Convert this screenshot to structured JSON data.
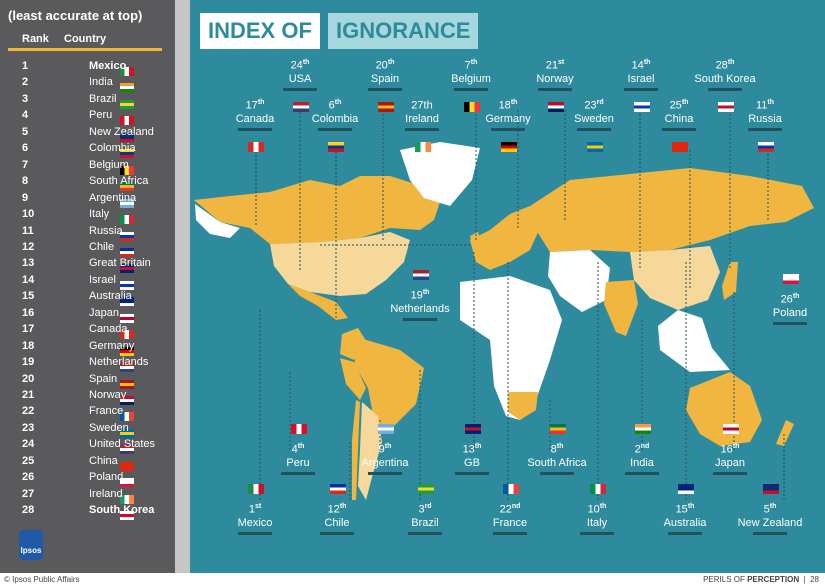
{
  "sidebar": {
    "heading": "(least accurate at top)",
    "col_rank": "Rank",
    "col_country": "Country",
    "rows": [
      {
        "rank": "1",
        "country": "Mexico",
        "flag": "mexico"
      },
      {
        "rank": "2",
        "country": "India",
        "flag": "india"
      },
      {
        "rank": "3",
        "country": "Brazil",
        "flag": "brazil"
      },
      {
        "rank": "4",
        "country": "Peru",
        "flag": "peru"
      },
      {
        "rank": "5",
        "country": "New Zealand",
        "flag": "new-zealand"
      },
      {
        "rank": "6",
        "country": "Colombia",
        "flag": "colombia"
      },
      {
        "rank": "7",
        "country": "Belgium",
        "flag": "belgium"
      },
      {
        "rank": "8",
        "country": "South Africa",
        "flag": "south-africa"
      },
      {
        "rank": "9",
        "country": "Argentina",
        "flag": "argentina"
      },
      {
        "rank": "10",
        "country": "Italy",
        "flag": "italy"
      },
      {
        "rank": "11",
        "country": "Russia",
        "flag": "russia"
      },
      {
        "rank": "12",
        "country": "Chile",
        "flag": "chile"
      },
      {
        "rank": "13",
        "country": "Great Britain",
        "flag": "great-britain"
      },
      {
        "rank": "14",
        "country": "Israel",
        "flag": "israel"
      },
      {
        "rank": "15",
        "country": "Australia",
        "flag": "australia"
      },
      {
        "rank": "16",
        "country": "Japan",
        "flag": "japan"
      },
      {
        "rank": "17",
        "country": "Canada",
        "flag": "canada"
      },
      {
        "rank": "18",
        "country": "Germany",
        "flag": "germany"
      },
      {
        "rank": "19",
        "country": "Netherlands",
        "flag": "netherlands"
      },
      {
        "rank": "20",
        "country": "Spain",
        "flag": "spain"
      },
      {
        "rank": "21",
        "country": "Norway",
        "flag": "norway"
      },
      {
        "rank": "22",
        "country": "France",
        "flag": "france"
      },
      {
        "rank": "23",
        "country": "Sweden",
        "flag": "sweden"
      },
      {
        "rank": "24",
        "country": "United States",
        "flag": "usa"
      },
      {
        "rank": "25",
        "country": "China",
        "flag": "china"
      },
      {
        "rank": "26",
        "country": "Poland",
        "flag": "poland"
      },
      {
        "rank": "27",
        "country": "Ireland",
        "flag": "ireland"
      },
      {
        "rank": "28",
        "country": "South Korea",
        "flag": "south-korea"
      }
    ],
    "logo_text": "Ipsos"
  },
  "title": {
    "part1": "INDEX OF",
    "part2": "IGNORANCE"
  },
  "map": {
    "land_color_high": "#f0b63f",
    "land_color_mid": "#f5d89a",
    "land_color_other": "#ffffff",
    "sea_color": "#2e8b9e",
    "callouts": [
      {
        "rank": "24",
        "suffix": "th",
        "name": "USA",
        "flag": "usa"
      },
      {
        "rank": "20",
        "suffix": "th",
        "name": "Spain",
        "flag": "spain"
      },
      {
        "rank": "7",
        "suffix": "th",
        "name": "Belgium",
        "flag": "belgium"
      },
      {
        "rank": "21",
        "suffix": "st",
        "name": "Norway",
        "flag": "norway"
      },
      {
        "rank": "14",
        "suffix": "th",
        "name": "Israel",
        "flag": "israel"
      },
      {
        "rank": "28",
        "suffix": "th",
        "name": "South Korea",
        "flag": "south-korea"
      },
      {
        "rank": "17",
        "suffix": "th",
        "name": "Canada",
        "flag": "canada"
      },
      {
        "rank": "6",
        "suffix": "th",
        "name": "Colombia",
        "flag": "colombia"
      },
      {
        "rank": "27th",
        "suffix": "",
        "name": "Ireland",
        "flag": "ireland"
      },
      {
        "rank": "18",
        "suffix": "th",
        "name": "Germany",
        "flag": "germany"
      },
      {
        "rank": "23",
        "suffix": "rd",
        "name": "Sweden",
        "flag": "sweden"
      },
      {
        "rank": "25",
        "suffix": "th",
        "name": "China",
        "flag": "china"
      },
      {
        "rank": "11",
        "suffix": "th",
        "name": "Russia",
        "flag": "russia"
      },
      {
        "rank": "19",
        "suffix": "th",
        "name": "Netherlands",
        "flag": "netherlands"
      },
      {
        "rank": "26",
        "suffix": "th",
        "name": "Poland",
        "flag": "poland"
      },
      {
        "rank": "4",
        "suffix": "th",
        "name": "Peru",
        "flag": "peru"
      },
      {
        "rank": "9",
        "suffix": "th",
        "name": "Argentina",
        "flag": "argentina"
      },
      {
        "rank": "13",
        "suffix": "th",
        "name": "GB",
        "flag": "great-britain"
      },
      {
        "rank": "8",
        "suffix": "th",
        "name": "South Africa",
        "flag": "south-africa"
      },
      {
        "rank": "2",
        "suffix": "nd",
        "name": "India",
        "flag": "india"
      },
      {
        "rank": "16",
        "suffix": "th",
        "name": "Japan",
        "flag": "japan"
      },
      {
        "rank": "1",
        "suffix": "st",
        "name": "Mexico",
        "flag": "mexico"
      },
      {
        "rank": "12",
        "suffix": "th",
        "name": "Chile",
        "flag": "chile"
      },
      {
        "rank": "3",
        "suffix": "rd",
        "name": "Brazil",
        "flag": "brazil"
      },
      {
        "rank": "22",
        "suffix": "nd",
        "name": "France",
        "flag": "france"
      },
      {
        "rank": "10",
        "suffix": "th",
        "name": "Italy",
        "flag": "italy"
      },
      {
        "rank": "15",
        "suffix": "th",
        "name": "Australia",
        "flag": "australia"
      },
      {
        "rank": "5",
        "suffix": "th",
        "name": "New Zealand",
        "flag": "new-zealand"
      }
    ]
  },
  "footer": {
    "left": "© Ipsos Public Affairs",
    "perils": "PERILS OF ",
    "perception": "PERCEPTION",
    "sep": "|",
    "page": "28"
  }
}
